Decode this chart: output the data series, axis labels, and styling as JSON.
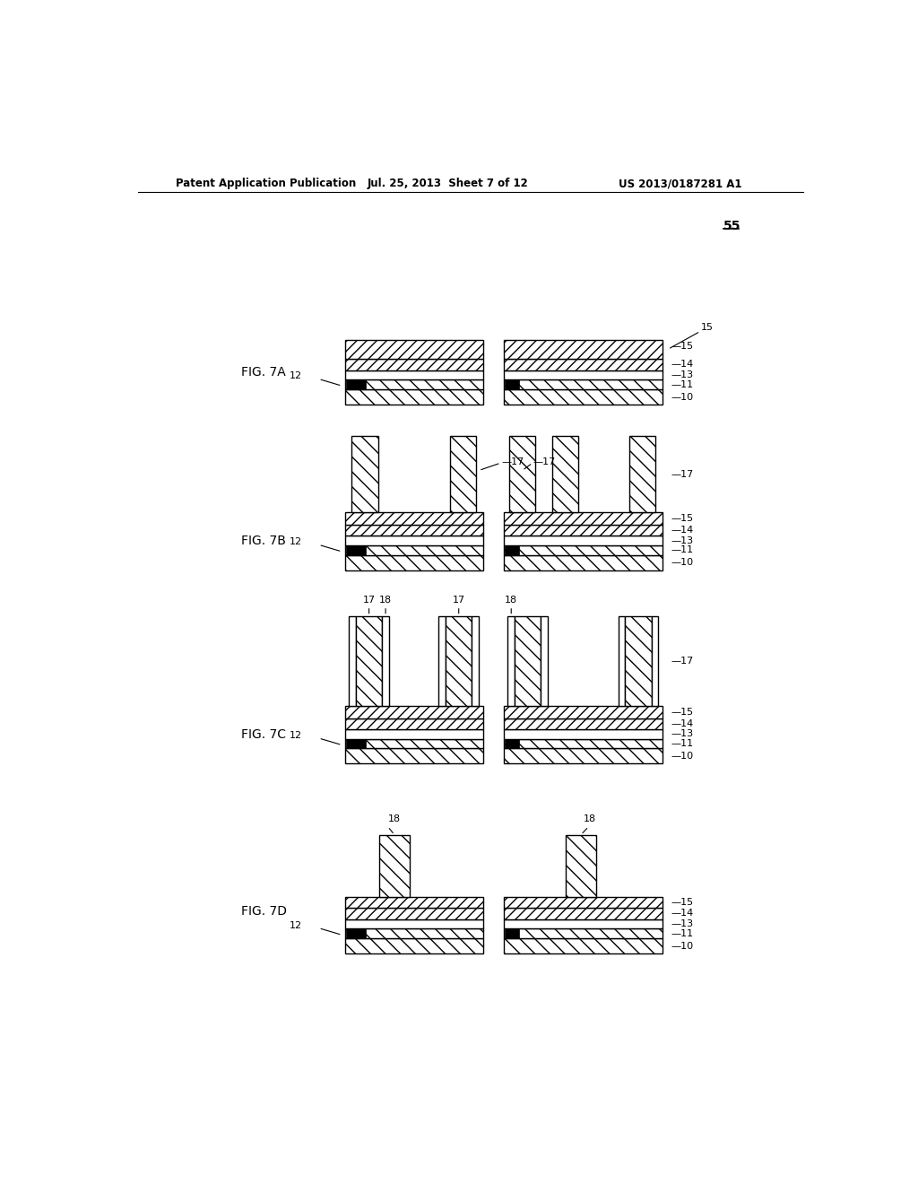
{
  "bg_color": "#ffffff",
  "header_left": "Patent Application Publication",
  "header_mid": "Jul. 25, 2013  Sheet 7 of 12",
  "header_right": "US 2013/0187281 A1",
  "ref55": "55",
  "figs": [
    "FIG. 7A",
    "FIG. 7B",
    "FIG. 7C",
    "FIG. 7D"
  ],
  "layer_ids": [
    "10",
    "11",
    "13",
    "14",
    "15"
  ],
  "pillar_id": "17",
  "spacer_id": "18",
  "base_id": "12"
}
